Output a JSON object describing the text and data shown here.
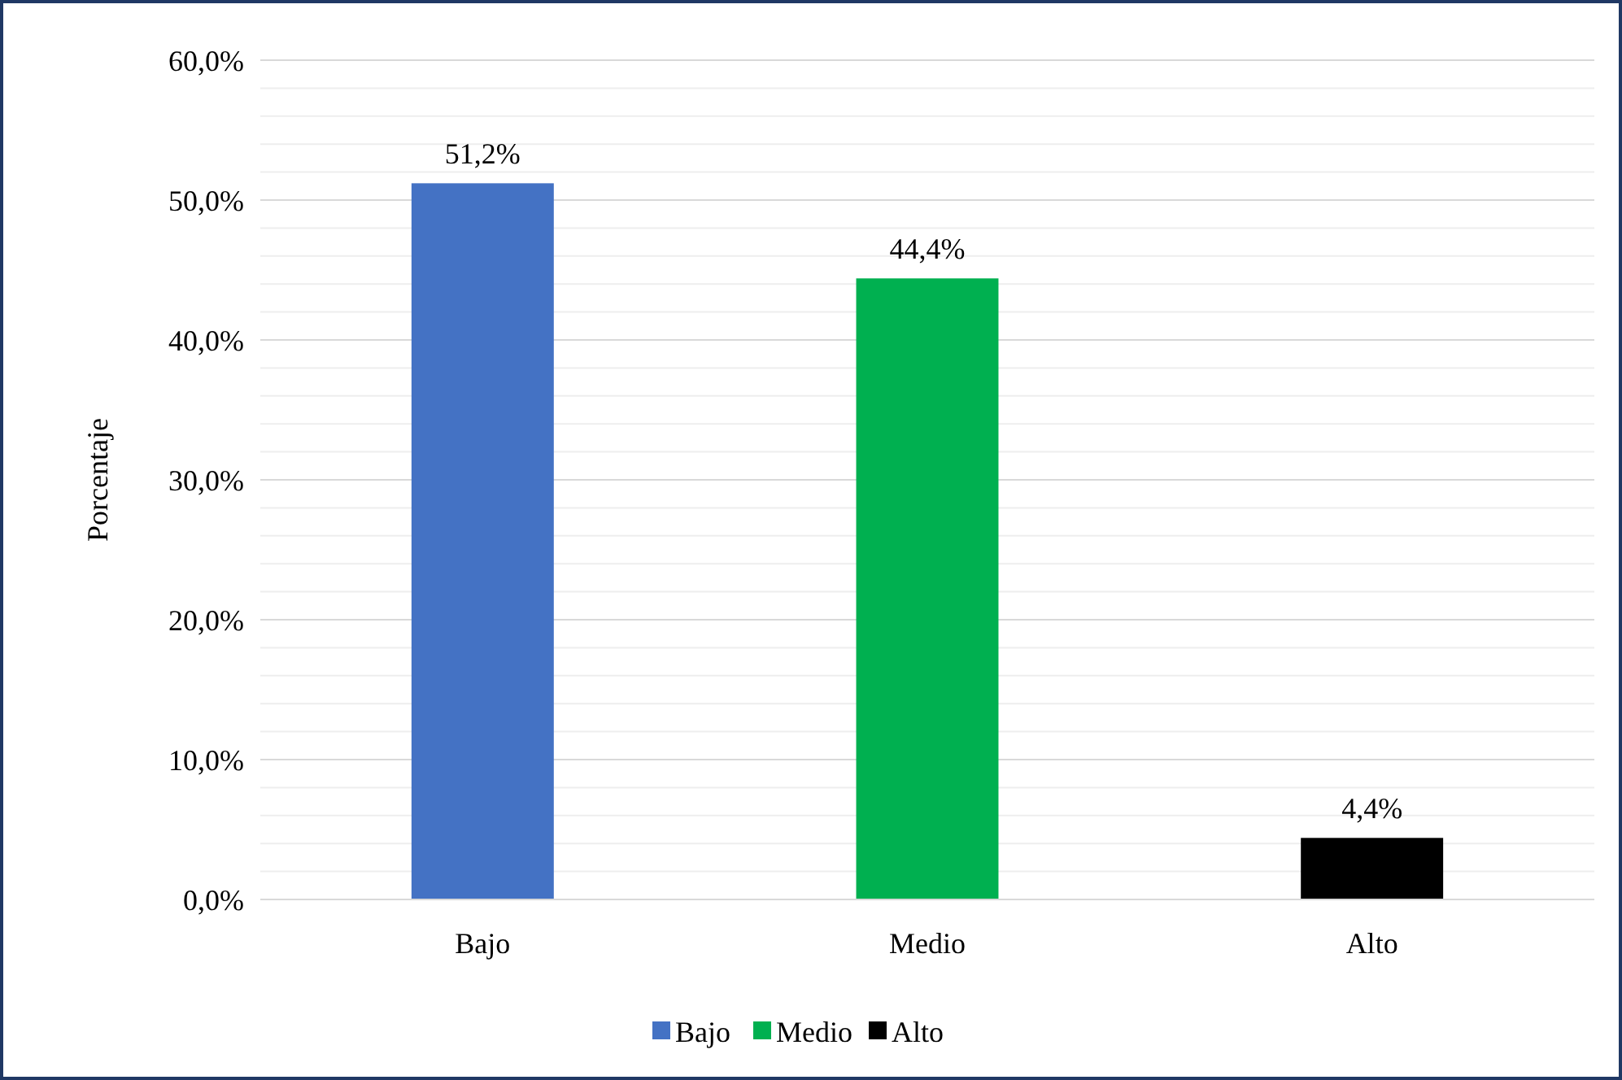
{
  "chart_data": {
    "type": "bar",
    "ylabel": "Porcentaje",
    "categories": [
      "Bajo",
      "Medio",
      "Alto"
    ],
    "series": [
      {
        "name": "Bajo",
        "color": "#4472c4",
        "values": [
          51.2,
          null,
          null
        ],
        "value_labels": [
          "51,2%",
          null,
          null
        ]
      },
      {
        "name": "Medio",
        "color": "#00b050",
        "values": [
          null,
          44.4,
          null
        ],
        "value_labels": [
          null,
          "44,4%",
          null
        ]
      },
      {
        "name": "Alto",
        "color": "#000000",
        "values": [
          null,
          null,
          4.4
        ],
        "value_labels": [
          null,
          null,
          "4,4%"
        ]
      }
    ],
    "ylim": [
      0,
      60
    ],
    "yticks": [
      {
        "value": 0,
        "label": "0,0%"
      },
      {
        "value": 2,
        "label": null
      },
      {
        "value": 4,
        "label": null
      },
      {
        "value": 6,
        "label": null
      },
      {
        "value": 8,
        "label": null
      },
      {
        "value": 10,
        "label": "10,0%"
      },
      {
        "value": 12,
        "label": null
      },
      {
        "value": 14,
        "label": null
      },
      {
        "value": 16,
        "label": null
      },
      {
        "value": 18,
        "label": null
      },
      {
        "value": 20,
        "label": "20,0%"
      },
      {
        "value": 22,
        "label": null
      },
      {
        "value": 24,
        "label": null
      },
      {
        "value": 26,
        "label": null
      },
      {
        "value": 28,
        "label": null
      },
      {
        "value": 30,
        "label": "30,0%"
      },
      {
        "value": 32,
        "label": null
      },
      {
        "value": 34,
        "label": null
      },
      {
        "value": 36,
        "label": null
      },
      {
        "value": 38,
        "label": null
      },
      {
        "value": 40,
        "label": "40,0%"
      },
      {
        "value": 42,
        "label": null
      },
      {
        "value": 44,
        "label": null
      },
      {
        "value": 46,
        "label": null
      },
      {
        "value": 48,
        "label": null
      },
      {
        "value": 50,
        "label": "50,0%"
      },
      {
        "value": 52,
        "label": null
      },
      {
        "value": 54,
        "label": null
      },
      {
        "value": 56,
        "label": null
      },
      {
        "value": 58,
        "label": null
      },
      {
        "value": 60,
        "label": "60,0%"
      }
    ],
    "grid": "y",
    "legend": "bottom"
  }
}
